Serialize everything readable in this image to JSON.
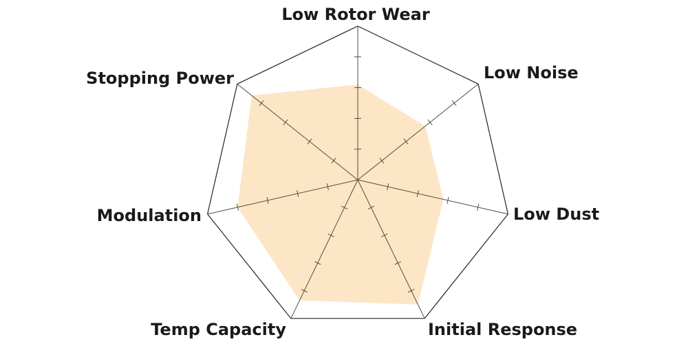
{
  "chart_data": {
    "type": "radar",
    "title": "",
    "axes": [
      "Low Rotor Wear",
      "Low Noise",
      "Low Dust",
      "Initial Response",
      "Temp Capacity",
      "Modulation",
      "Stopping Power"
    ],
    "range": [
      0,
      5
    ],
    "ticks": [
      1,
      2,
      3,
      4
    ],
    "grid": false,
    "series": [
      {
        "values": [
          3.1,
          2.8,
          2.85,
          4.5,
          4.35,
          4.0,
          4.4
        ],
        "color": "#fde6c6"
      }
    ],
    "outline_color": "#222222",
    "axis_color": "#5a4a3a"
  }
}
